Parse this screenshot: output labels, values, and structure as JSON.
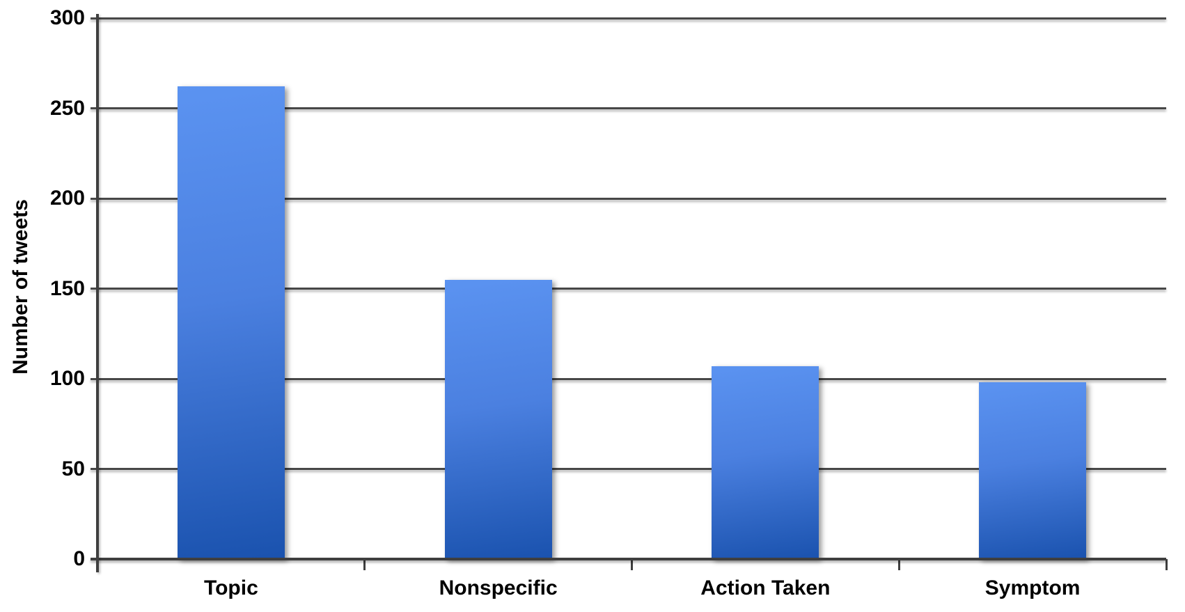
{
  "chart_data": {
    "type": "bar",
    "title": "",
    "xlabel": "",
    "ylabel": "Number of tweets",
    "categories": [
      "Topic",
      "Nonspecific",
      "Action Taken",
      "Symptom"
    ],
    "values": [
      262,
      155,
      107,
      98
    ],
    "ylim": [
      0,
      300
    ],
    "yticks": [
      0,
      50,
      100,
      150,
      200,
      250,
      300
    ],
    "ytick_interval": 50,
    "grid": "horizontal-only",
    "legend_position": "none",
    "colors": {
      "bar_gradient_top": "#5b93f1",
      "bar_gradient_bottom": "#1a52ae",
      "gridline": "#474747",
      "axis": "#3f3f3f",
      "text": "#000000",
      "background": "#ffffff"
    }
  }
}
